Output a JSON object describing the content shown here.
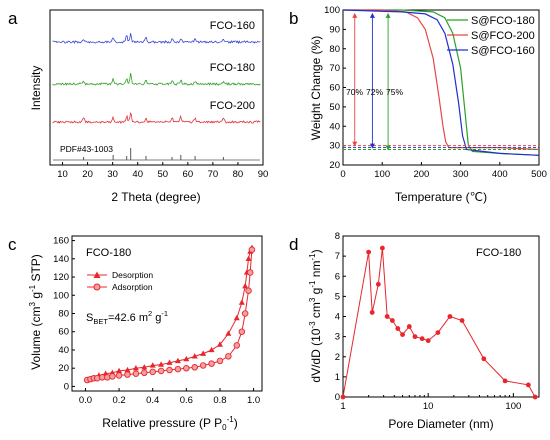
{
  "chart_data": [
    {
      "panel": "a",
      "type": "line",
      "xlabel": "2 Theta (degree)",
      "ylabel": "Intensity",
      "xlim": [
        5,
        90
      ],
      "xticks": [
        10,
        20,
        30,
        40,
        50,
        60,
        70,
        80,
        90
      ],
      "series": [
        {
          "name": "FCO-160",
          "color": "#3a46d6"
        },
        {
          "name": "FCO-180",
          "color": "#33a02c"
        },
        {
          "name": "FCO-200",
          "color": "#e0303a"
        },
        {
          "name": "PDF#43-1003",
          "color": "#555555"
        }
      ],
      "peaks": [
        18.4,
        30.2,
        35.6,
        37.2,
        43.3,
        53.7,
        57.2,
        62.9,
        74.2
      ]
    },
    {
      "panel": "b",
      "type": "line",
      "xlabel": "Temperature (℃)",
      "ylabel": "Weight Change (%)",
      "xlim": [
        0,
        500
      ],
      "ylim": [
        20,
        100
      ],
      "xticks": [
        0,
        100,
        200,
        300,
        400,
        500
      ],
      "yticks": [
        20,
        30,
        40,
        50,
        60,
        70,
        80,
        90,
        100
      ],
      "legend": "top-right",
      "annotations": [
        "70%",
        "72%",
        "75%"
      ],
      "series": [
        {
          "name": "S@FCO-180",
          "color": "#2aa02a",
          "x": [
            0,
            150,
            230,
            260,
            280,
            300,
            310,
            320,
            330,
            400,
            500
          ],
          "y": [
            100,
            100,
            99,
            96,
            88,
            70,
            50,
            30,
            27,
            26,
            25
          ]
        },
        {
          "name": "S@FCO-200",
          "color": "#e84646",
          "x": [
            0,
            100,
            160,
            190,
            210,
            230,
            245,
            255,
            262,
            270,
            400,
            500
          ],
          "y": [
            100,
            100,
            99,
            96,
            90,
            75,
            55,
            40,
            32,
            29,
            29,
            28
          ]
        },
        {
          "name": "S@FCO-160",
          "color": "#2030d0",
          "x": [
            0,
            150,
            210,
            240,
            260,
            280,
            295,
            305,
            315,
            400,
            500
          ],
          "y": [
            100,
            99,
            98,
            95,
            88,
            72,
            52,
            35,
            28,
            26,
            25
          ]
        }
      ]
    },
    {
      "panel": "c",
      "type": "scatter",
      "title": "FCO-180",
      "xlabel": "Relative pressure (P P",
      "xlabel_sub": "0",
      "xlabel_sup": "-1",
      "xlabel_end": ")",
      "ylabel": "Volume (cm",
      "ylabel_sup": "3",
      "ylabel_mid": " g",
      "ylabel_sup2": "-1",
      "ylabel_end": " STP)",
      "xlim": [
        -0.08,
        1.05
      ],
      "ylim": [
        -5,
        165
      ],
      "xticks": [
        0.0,
        0.2,
        0.4,
        0.6,
        0.8,
        1.0
      ],
      "yticks": [
        0,
        20,
        40,
        60,
        80,
        100,
        120,
        140,
        160
      ],
      "annotation": "S",
      "annotation_sub": "BET",
      "annotation_end": "=42.6 m",
      "annotation_sup": "2",
      "annotation_end2": " g",
      "annotation_sup2": "-1",
      "legend": "top-left",
      "series": [
        {
          "name": "Desorption",
          "marker": "triangle",
          "color": "#e8262c",
          "x": [
            0.99,
            0.98,
            0.97,
            0.96,
            0.95,
            0.93,
            0.9,
            0.85,
            0.8,
            0.75,
            0.7,
            0.65,
            0.6,
            0.55,
            0.5,
            0.45,
            0.4,
            0.35,
            0.3,
            0.25,
            0.2,
            0.16,
            0.12,
            0.08
          ],
          "y": [
            152,
            148,
            140,
            125,
            110,
            92,
            75,
            58,
            46,
            40,
            36,
            33,
            30,
            28,
            26,
            24,
            23,
            21,
            20,
            18,
            17,
            15,
            14,
            12
          ]
        },
        {
          "name": "Adsorption",
          "marker": "circle",
          "color": "#e8262c",
          "x": [
            0.01,
            0.03,
            0.05,
            0.07,
            0.1,
            0.13,
            0.16,
            0.2,
            0.25,
            0.3,
            0.35,
            0.4,
            0.45,
            0.5,
            0.55,
            0.6,
            0.65,
            0.7,
            0.75,
            0.8,
            0.85,
            0.9,
            0.93,
            0.95,
            0.97,
            0.98,
            0.99
          ],
          "y": [
            7,
            8,
            9,
            9,
            10,
            10,
            11,
            12,
            13,
            14,
            15,
            16,
            17,
            18,
            19,
            20,
            21,
            23,
            25,
            28,
            33,
            45,
            60,
            80,
            105,
            125,
            150
          ]
        }
      ]
    },
    {
      "panel": "d",
      "type": "line",
      "title": "FCO-180",
      "xlabel": "Pore Diameter (nm)",
      "ylabel": "dV/dD (10",
      "ylabel_sup": "-3",
      "ylabel_mid": " cm",
      "ylabel_sup2": "3",
      "ylabel_mid2": " g",
      "ylabel_sup3": "-1",
      "ylabel_mid3": " nm",
      "ylabel_sup4": "-1",
      "ylabel_end": ")",
      "xscale": "log",
      "xlim": [
        1,
        200
      ],
      "ylim": [
        0,
        8
      ],
      "xticks": [
        1,
        10,
        100
      ],
      "yticks": [
        0,
        1,
        2,
        3,
        4,
        5,
        6,
        7,
        8
      ],
      "series": [
        {
          "name": "",
          "color": "#e8262c",
          "x": [
            1.0,
            2.0,
            2.2,
            2.6,
            2.9,
            3.3,
            3.8,
            4.4,
            5.0,
            6.0,
            7.0,
            8.5,
            10.0,
            13.0,
            18.0,
            25.0,
            45.0,
            80.0,
            150.0,
            180.0
          ],
          "y": [
            0.0,
            7.2,
            4.2,
            5.6,
            7.4,
            4.0,
            3.8,
            3.4,
            3.1,
            3.5,
            3.0,
            2.9,
            2.8,
            3.2,
            4.0,
            3.8,
            1.9,
            0.8,
            0.6,
            0.0
          ]
        }
      ]
    }
  ],
  "panels": {
    "a": {
      "letter": "a",
      "pdf_label": "PDF#43-1003"
    },
    "b": {
      "letter": "b",
      "pct1": "70%",
      "pct2": "72%",
      "pct3": "75%"
    },
    "c": {
      "letter": "c"
    },
    "d": {
      "letter": "d"
    }
  }
}
